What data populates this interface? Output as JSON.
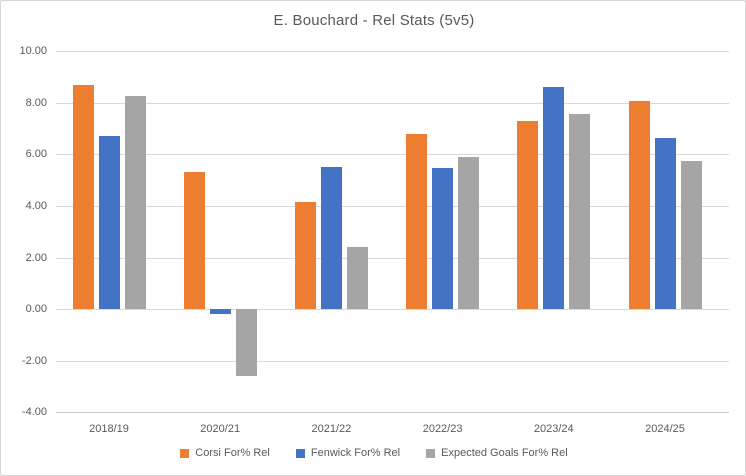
{
  "window": {
    "background_color": "#FFFFFF",
    "border_color": "#D6D6D6"
  },
  "chart_data": {
    "type": "bar",
    "title": "E. Bouchard - Rel Stats (5v5)",
    "title_color": "#595959",
    "categories": [
      "2018/19",
      "2020/21",
      "2021/22",
      "2022/23",
      "2023/24",
      "2024/25"
    ],
    "series": [
      {
        "name": "Corsi For% Rel",
        "color": "#ED7D31",
        "values": [
          8.7,
          5.3,
          4.15,
          6.8,
          7.3,
          8.05
        ]
      },
      {
        "name": "Fenwick For% Rel",
        "color": "#4472C4",
        "values": [
          6.7,
          -0.2,
          5.5,
          5.45,
          8.6,
          6.65
        ]
      },
      {
        "name": "Expected Goals For% Rel",
        "color": "#A5A5A5",
        "values": [
          8.25,
          -2.6,
          2.4,
          5.9,
          7.55,
          5.75
        ]
      }
    ],
    "xlabel": "",
    "ylabel": "",
    "ylim": [
      -4,
      10
    ],
    "ytick_step": 2,
    "ytick_labels": [
      "10.00",
      "8.00",
      "6.00",
      "4.00",
      "2.00",
      "0.00",
      "-2.00",
      "-4.00"
    ],
    "grid": true,
    "gridline_color": "#D9D9D9",
    "axis_text_color": "#595959",
    "legend_position": "bottom"
  }
}
